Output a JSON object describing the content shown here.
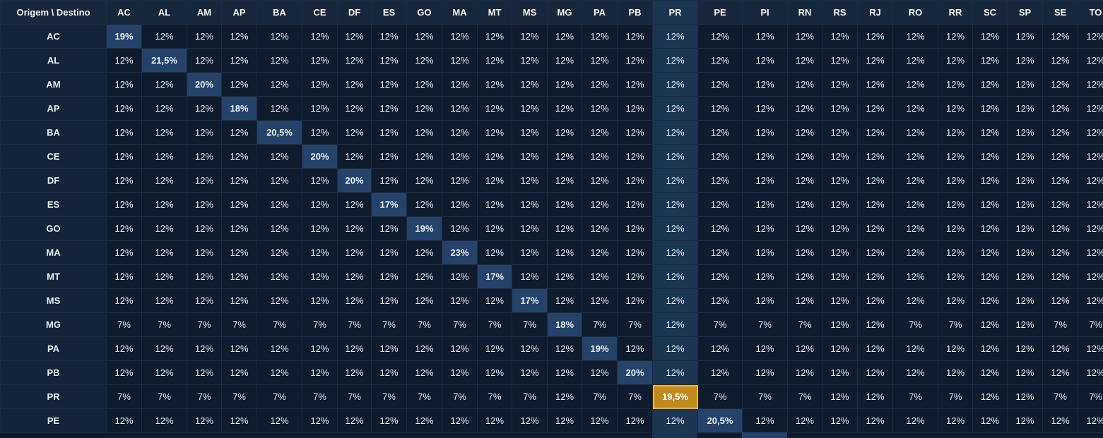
{
  "table": {
    "corner": "Origem \\ Destino",
    "columns": [
      "AC",
      "AL",
      "AM",
      "AP",
      "BA",
      "CE",
      "DF",
      "ES",
      "GO",
      "MA",
      "MT",
      "MS",
      "MG",
      "PA",
      "PB",
      "PR",
      "PE",
      "PI",
      "RN",
      "RS",
      "RJ",
      "RO",
      "RR",
      "SC",
      "SP",
      "SE",
      "TO"
    ],
    "selected": {
      "origin": "PR",
      "destination": "PR"
    },
    "rows": [
      {
        "label": "AC",
        "cells": [
          "19%",
          "12%",
          "12%",
          "12%",
          "12%",
          "12%",
          "12%",
          "12%",
          "12%",
          "12%",
          "12%",
          "12%",
          "12%",
          "12%",
          "12%",
          "12%",
          "12%",
          "12%",
          "12%",
          "12%",
          "12%",
          "12%",
          "12%",
          "12%",
          "12%",
          "12%",
          "12%"
        ]
      },
      {
        "label": "AL",
        "cells": [
          "12%",
          "21,5%",
          "12%",
          "12%",
          "12%",
          "12%",
          "12%",
          "12%",
          "12%",
          "12%",
          "12%",
          "12%",
          "12%",
          "12%",
          "12%",
          "12%",
          "12%",
          "12%",
          "12%",
          "12%",
          "12%",
          "12%",
          "12%",
          "12%",
          "12%",
          "12%",
          "12%"
        ]
      },
      {
        "label": "AM",
        "cells": [
          "12%",
          "12%",
          "20%",
          "12%",
          "12%",
          "12%",
          "12%",
          "12%",
          "12%",
          "12%",
          "12%",
          "12%",
          "12%",
          "12%",
          "12%",
          "12%",
          "12%",
          "12%",
          "12%",
          "12%",
          "12%",
          "12%",
          "12%",
          "12%",
          "12%",
          "12%",
          "12%"
        ]
      },
      {
        "label": "AP",
        "cells": [
          "12%",
          "12%",
          "12%",
          "18%",
          "12%",
          "12%",
          "12%",
          "12%",
          "12%",
          "12%",
          "12%",
          "12%",
          "12%",
          "12%",
          "12%",
          "12%",
          "12%",
          "12%",
          "12%",
          "12%",
          "12%",
          "12%",
          "12%",
          "12%",
          "12%",
          "12%",
          "12%"
        ]
      },
      {
        "label": "BA",
        "cells": [
          "12%",
          "12%",
          "12%",
          "12%",
          "20,5%",
          "12%",
          "12%",
          "12%",
          "12%",
          "12%",
          "12%",
          "12%",
          "12%",
          "12%",
          "12%",
          "12%",
          "12%",
          "12%",
          "12%",
          "12%",
          "12%",
          "12%",
          "12%",
          "12%",
          "12%",
          "12%",
          "12%"
        ]
      },
      {
        "label": "CE",
        "cells": [
          "12%",
          "12%",
          "12%",
          "12%",
          "12%",
          "20%",
          "12%",
          "12%",
          "12%",
          "12%",
          "12%",
          "12%",
          "12%",
          "12%",
          "12%",
          "12%",
          "12%",
          "12%",
          "12%",
          "12%",
          "12%",
          "12%",
          "12%",
          "12%",
          "12%",
          "12%",
          "12%"
        ]
      },
      {
        "label": "DF",
        "cells": [
          "12%",
          "12%",
          "12%",
          "12%",
          "12%",
          "12%",
          "20%",
          "12%",
          "12%",
          "12%",
          "12%",
          "12%",
          "12%",
          "12%",
          "12%",
          "12%",
          "12%",
          "12%",
          "12%",
          "12%",
          "12%",
          "12%",
          "12%",
          "12%",
          "12%",
          "12%",
          "12%"
        ]
      },
      {
        "label": "ES",
        "cells": [
          "12%",
          "12%",
          "12%",
          "12%",
          "12%",
          "12%",
          "12%",
          "17%",
          "12%",
          "12%",
          "12%",
          "12%",
          "12%",
          "12%",
          "12%",
          "12%",
          "12%",
          "12%",
          "12%",
          "12%",
          "12%",
          "12%",
          "12%",
          "12%",
          "12%",
          "12%",
          "12%"
        ]
      },
      {
        "label": "GO",
        "cells": [
          "12%",
          "12%",
          "12%",
          "12%",
          "12%",
          "12%",
          "12%",
          "12%",
          "19%",
          "12%",
          "12%",
          "12%",
          "12%",
          "12%",
          "12%",
          "12%",
          "12%",
          "12%",
          "12%",
          "12%",
          "12%",
          "12%",
          "12%",
          "12%",
          "12%",
          "12%",
          "12%"
        ]
      },
      {
        "label": "MA",
        "cells": [
          "12%",
          "12%",
          "12%",
          "12%",
          "12%",
          "12%",
          "12%",
          "12%",
          "12%",
          "23%",
          "12%",
          "12%",
          "12%",
          "12%",
          "12%",
          "12%",
          "12%",
          "12%",
          "12%",
          "12%",
          "12%",
          "12%",
          "12%",
          "12%",
          "12%",
          "12%",
          "12%"
        ]
      },
      {
        "label": "MT",
        "cells": [
          "12%",
          "12%",
          "12%",
          "12%",
          "12%",
          "12%",
          "12%",
          "12%",
          "12%",
          "12%",
          "17%",
          "12%",
          "12%",
          "12%",
          "12%",
          "12%",
          "12%",
          "12%",
          "12%",
          "12%",
          "12%",
          "12%",
          "12%",
          "12%",
          "12%",
          "12%",
          "12%"
        ]
      },
      {
        "label": "MS",
        "cells": [
          "12%",
          "12%",
          "12%",
          "12%",
          "12%",
          "12%",
          "12%",
          "12%",
          "12%",
          "12%",
          "12%",
          "17%",
          "12%",
          "12%",
          "12%",
          "12%",
          "12%",
          "12%",
          "12%",
          "12%",
          "12%",
          "12%",
          "12%",
          "12%",
          "12%",
          "12%",
          "12%"
        ]
      },
      {
        "label": "MG",
        "cells": [
          "7%",
          "7%",
          "7%",
          "7%",
          "7%",
          "7%",
          "7%",
          "7%",
          "7%",
          "7%",
          "7%",
          "7%",
          "18%",
          "7%",
          "7%",
          "12%",
          "7%",
          "7%",
          "7%",
          "12%",
          "12%",
          "7%",
          "7%",
          "12%",
          "12%",
          "7%",
          "7%"
        ]
      },
      {
        "label": "PA",
        "cells": [
          "12%",
          "12%",
          "12%",
          "12%",
          "12%",
          "12%",
          "12%",
          "12%",
          "12%",
          "12%",
          "12%",
          "12%",
          "12%",
          "19%",
          "12%",
          "12%",
          "12%",
          "12%",
          "12%",
          "12%",
          "12%",
          "12%",
          "12%",
          "12%",
          "12%",
          "12%",
          "12%"
        ]
      },
      {
        "label": "PB",
        "cells": [
          "12%",
          "12%",
          "12%",
          "12%",
          "12%",
          "12%",
          "12%",
          "12%",
          "12%",
          "12%",
          "12%",
          "12%",
          "12%",
          "12%",
          "20%",
          "12%",
          "12%",
          "12%",
          "12%",
          "12%",
          "12%",
          "12%",
          "12%",
          "12%",
          "12%",
          "12%",
          "12%"
        ]
      },
      {
        "label": "PR",
        "cells": [
          "7%",
          "7%",
          "7%",
          "7%",
          "7%",
          "7%",
          "7%",
          "7%",
          "7%",
          "7%",
          "7%",
          "7%",
          "12%",
          "7%",
          "7%",
          "19,5%",
          "7%",
          "7%",
          "7%",
          "12%",
          "12%",
          "7%",
          "7%",
          "12%",
          "12%",
          "7%",
          "7%"
        ]
      },
      {
        "label": "PE",
        "cells": [
          "12%",
          "12%",
          "12%",
          "12%",
          "12%",
          "12%",
          "12%",
          "12%",
          "12%",
          "12%",
          "12%",
          "12%",
          "12%",
          "12%",
          "12%",
          "12%",
          "20,5%",
          "12%",
          "12%",
          "12%",
          "12%",
          "12%",
          "12%",
          "12%",
          "12%",
          "12%",
          "12%"
        ]
      }
    ]
  }
}
